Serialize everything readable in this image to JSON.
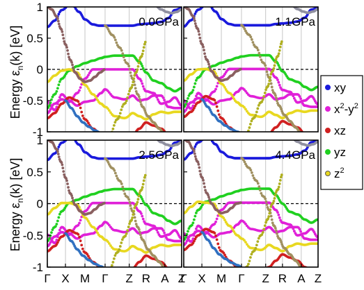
{
  "chart_data": {
    "type": "scatter",
    "title": "",
    "ylabel": {
      "main": "Energy ε",
      "sub": "n",
      "rest": "(k) [eV]"
    },
    "xlabel": "",
    "ylim": [
      -1,
      1
    ],
    "yticks": [
      "1",
      "0.5",
      "0",
      "-0.5",
      "-1"
    ],
    "ytick_values": [
      1,
      0.5,
      0,
      -0.5,
      -1
    ],
    "kpoints": [
      "Γ",
      "X",
      "M",
      "Γ",
      "Z",
      "R",
      "A",
      "Z"
    ],
    "fermi_level": 0,
    "grid": "vertical lines at high-symmetry k-points",
    "legend_position": "right",
    "legend": [
      {
        "name": "xy",
        "label": "xy",
        "color": "#1a1adc"
      },
      {
        "name": "x2-y2",
        "label_base": "x",
        "label_sup1": "2",
        "label_mid": "-y",
        "label_sup2": "2",
        "color": "#e020d8"
      },
      {
        "name": "xz",
        "label": "xz",
        "color": "#d02020"
      },
      {
        "name": "yz",
        "label": "yz",
        "color": "#20d020"
      },
      {
        "name": "z2",
        "label_base": "z",
        "label_sup1": "2",
        "color": "#e8d820"
      }
    ],
    "panels": [
      {
        "label": "0.0GPa"
      },
      {
        "label": "1.1GPa"
      },
      {
        "label": "2.5GPa"
      },
      {
        "label": "4.4GPa"
      }
    ],
    "bands": [
      {
        "name": "xy-top",
        "color": "#1a1adc",
        "k": [
          0,
          0.4,
          0.8,
          1.3,
          1.7,
          2.0,
          2.4,
          2.7,
          3.0,
          3.4,
          3.8,
          4.2,
          4.6,
          5.0,
          5.4,
          5.8,
          6.2,
          6.6,
          7.0
        ],
        "e": [
          0.68,
          0.78,
          0.95,
          1.05,
          0.92,
          0.8,
          0.72,
          0.7,
          0.7,
          0.7,
          0.7,
          0.7,
          0.72,
          0.73,
          0.74,
          0.76,
          0.82,
          0.95,
          0.98
        ]
      },
      {
        "name": "x2y2-upper",
        "color": "#e020d8",
        "k": [
          0,
          0.4,
          0.8,
          1.2,
          1.6,
          2.0,
          2.4,
          2.8,
          3.0,
          3.4,
          3.8,
          4.2,
          4.6,
          5.0,
          5.4,
          5.8,
          6.2,
          6.6,
          7.0
        ],
        "e": [
          -0.7,
          -0.55,
          -0.48,
          -0.52,
          -0.38,
          -0.15,
          0.0,
          0.0,
          0.0,
          0.0,
          0.0,
          0.0,
          -0.15,
          -0.35,
          -0.38,
          -0.55,
          -0.52,
          -0.45,
          -0.58
        ]
      },
      {
        "name": "x2y2-lower",
        "color": "#e020d8",
        "k": [
          0,
          0.4,
          0.8,
          1.2,
          1.6,
          2.0,
          2.4,
          2.8,
          3.0,
          3.4,
          3.8,
          4.2,
          4.6,
          5.0,
          5.4,
          5.8,
          6.2,
          6.6,
          7.0
        ],
        "e": [
          -0.52,
          -0.65,
          -0.4,
          -0.5,
          -0.58,
          -0.52,
          -0.5,
          -0.38,
          -0.32,
          -0.45,
          -0.48,
          -0.42,
          -0.5,
          -0.48,
          -0.42,
          -0.42,
          -0.6,
          -0.62,
          -0.62
        ]
      },
      {
        "name": "yz-flat",
        "color": "#20d020",
        "k": [
          0,
          0.4,
          0.8,
          1.2,
          1.6,
          2.0,
          2.4,
          2.8,
          3.0,
          3.4,
          3.8,
          4.2,
          4.6,
          5.0,
          5.4,
          5.8,
          6.2,
          6.6,
          7.0
        ],
        "e": [
          -0.62,
          -0.4,
          -0.15,
          -0.02,
          0.05,
          0.1,
          0.14,
          0.18,
          0.2,
          0.22,
          0.22,
          0.22,
          0.12,
          -0.05,
          -0.18,
          -0.22,
          -0.3,
          -0.35,
          -0.3
        ]
      },
      {
        "name": "z2-band",
        "color": "#e8d820",
        "k": [
          0,
          0.4,
          0.8,
          1.2,
          1.6,
          2.0,
          2.4,
          2.8,
          3.0,
          3.4,
          3.8,
          4.2,
          4.6,
          5.0,
          5.4,
          5.8,
          6.2,
          6.6,
          7.0
        ],
        "e": [
          -0.2,
          -0.1,
          -0.02,
          0.0,
          -0.05,
          -0.25,
          -0.4,
          -0.55,
          -0.6,
          -0.75,
          -0.78,
          -0.7,
          -0.75,
          -0.8,
          -0.72,
          -0.68,
          -0.7,
          -0.68,
          -0.68
        ]
      },
      {
        "name": "xz-deep",
        "color": "#d02020",
        "k": [
          0,
          0.4,
          0.8,
          1.2,
          1.6,
          2.0,
          2.4,
          2.8,
          3.0,
          3.4,
          3.8,
          4.2,
          4.6,
          5.0,
          5.4,
          5.8,
          6.2,
          6.6,
          7.0
        ],
        "e": [
          -0.78,
          -0.7,
          -0.55,
          -0.45,
          -0.5,
          -0.8,
          -0.95,
          -1.05,
          -1.1,
          -1.15,
          -1.1,
          -1.05,
          -0.95,
          -0.85,
          -0.9,
          -0.95,
          -1.05,
          -1.1,
          -1.1
        ]
      },
      {
        "name": "mixed-dispersive",
        "color": "#8a6060",
        "k": [
          0,
          0.25,
          0.5,
          0.75,
          1.0,
          1.25,
          1.5,
          1.75,
          2.0,
          2.25,
          2.5,
          2.75,
          3.0
        ],
        "e": [
          1.0,
          0.96,
          0.85,
          0.65,
          0.4,
          0.15,
          -0.05,
          -0.15,
          -0.2,
          -0.18,
          -0.12,
          -0.05,
          0.0
        ]
      },
      {
        "name": "mixed-steep",
        "color": "#a09060",
        "k": [
          3.0,
          3.3,
          3.6,
          3.9,
          4.2,
          4.5,
          4.8,
          5.1,
          5.4,
          5.7,
          6.0
        ],
        "e": [
          0.7,
          0.55,
          0.35,
          0.1,
          -0.15,
          -0.4,
          -0.6,
          -0.75,
          -0.85,
          -0.95,
          -1.05
        ]
      },
      {
        "name": "xy-dispersive",
        "color": "#3070c0",
        "k": [
          1.0,
          1.3,
          1.6,
          1.9,
          2.2,
          2.5,
          2.8,
          3.0
        ],
        "e": [
          -0.5,
          -0.62,
          -0.75,
          -0.85,
          -0.92,
          -0.98,
          -1.02,
          -1.05
        ]
      },
      {
        "name": "z2-steep",
        "color": "#b0b020",
        "k": [
          3.2,
          3.5,
          3.8,
          4.1,
          4.4,
          4.7,
          5.0
        ],
        "e": [
          -1.05,
          -0.8,
          -0.55,
          -0.3,
          -0.05,
          0.2,
          0.45
        ]
      },
      {
        "name": "upper-grey",
        "color": "#9090a0",
        "k": [
          5.5,
          5.8,
          6.1,
          6.4,
          6.7,
          7.0
        ],
        "e": [
          1.02,
          0.96,
          0.92,
          0.9,
          0.92,
          0.96
        ]
      }
    ]
  }
}
